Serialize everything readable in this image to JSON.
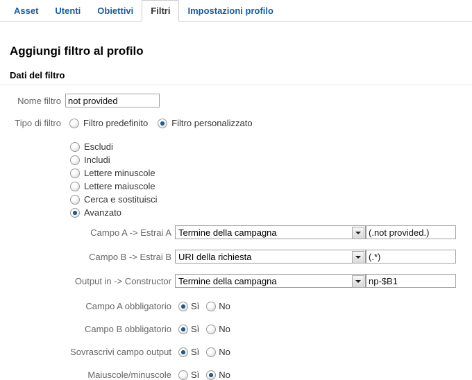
{
  "tabs": [
    {
      "label": "Asset",
      "active": false
    },
    {
      "label": "Utenti",
      "active": false
    },
    {
      "label": "Obiettivi",
      "active": false
    },
    {
      "label": "Filtri",
      "active": true
    },
    {
      "label": "Impostazioni profilo",
      "active": false
    }
  ],
  "page": {
    "title": "Aggiungi filtro al profilo"
  },
  "section": {
    "title": "Dati del filtro"
  },
  "form": {
    "name": {
      "label": "Nome filtro",
      "value": "not provided"
    },
    "type": {
      "label": "Tipo di filtro",
      "options": [
        {
          "label": "Filtro predefinito",
          "checked": false
        },
        {
          "label": "Filtro personalizzato",
          "checked": true
        }
      ]
    },
    "custom_types": [
      {
        "label": "Escludi",
        "checked": false
      },
      {
        "label": "Includi",
        "checked": false
      },
      {
        "label": "Lettere minuscole",
        "checked": false
      },
      {
        "label": "Lettere maiuscole",
        "checked": false
      },
      {
        "label": "Cerca e sostituisci",
        "checked": false
      },
      {
        "label": "Avanzato",
        "checked": true
      }
    ],
    "advanced": {
      "field_a": {
        "label": "Campo A -> Estrai A",
        "select": "Termine della campagna",
        "value": "(.not provided.)"
      },
      "field_b": {
        "label": "Campo B -> Estrai B",
        "select": "URI della richiesta",
        "value": "(.*)"
      },
      "output": {
        "label": "Output in -> Constructor",
        "select": "Termine della campagna",
        "value": "np-$B1"
      },
      "yes_label": "Sì",
      "no_label": "No",
      "toggles": [
        {
          "label": "Campo A obbligatorio",
          "value": "yes"
        },
        {
          "label": "Campo B obbligatorio",
          "value": "yes"
        },
        {
          "label": "Sovrascrivi campo output",
          "value": "yes"
        },
        {
          "label": "Maiuscole/minuscole",
          "value": "no"
        }
      ]
    }
  },
  "colors": {
    "link_blue": "#1b5c98",
    "radio_dot": "#1f5d90",
    "divider": "#dfe4ea"
  }
}
